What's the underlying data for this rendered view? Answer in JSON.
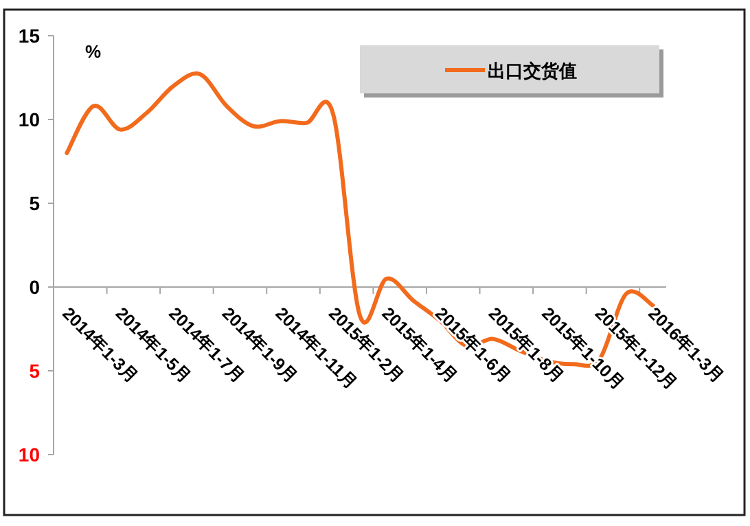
{
  "chart_data": {
    "type": "line",
    "ylabel": "%",
    "categories": [
      "2014年1-3月",
      null,
      "2014年1-5月",
      null,
      "2014年1-7月",
      null,
      "2014年1-9月",
      null,
      "2014年1-11月",
      null,
      "2015年1-2月",
      null,
      "2015年1-4月",
      null,
      "2015年1-6月",
      null,
      "2015年1-8月",
      null,
      "2015年1-10月",
      null,
      "2015年1-12月",
      null,
      "2016年1-3月"
    ],
    "series": [
      {
        "name": "出口交货值",
        "color": "#f26b1d",
        "values": [
          8.0,
          10.8,
          9.4,
          10.4,
          12.0,
          12.7,
          10.8,
          9.6,
          9.9,
          9.8,
          10.3,
          -1.7,
          0.5,
          -0.8,
          -2.0,
          -3.5,
          -3.1,
          -3.8,
          -4.4,
          -4.6,
          -4.3,
          -0.4,
          -1.1
        ]
      }
    ],
    "ylim": [
      -10,
      15
    ],
    "yticks": [
      15,
      10,
      5,
      0,
      {
        "value": -5,
        "label": "5"
      },
      {
        "value": -10,
        "label": "10"
      }
    ],
    "grid": false,
    "legend": "top right",
    "marker": "none",
    "line_style": "solid"
  }
}
